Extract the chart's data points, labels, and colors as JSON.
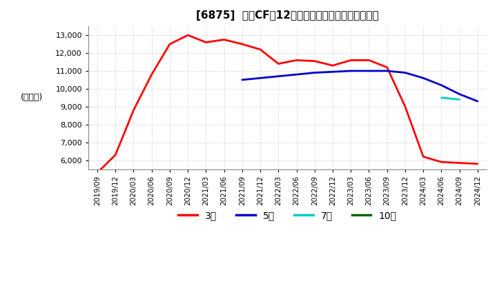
{
  "title": "[6875]  営業CFの12か月移動合計の標準偏差の推移",
  "ylabel": "(百万円)",
  "ylim": [
    5500,
    13500
  ],
  "yticks": [
    6000,
    7000,
    8000,
    9000,
    10000,
    11000,
    12000,
    13000
  ],
  "background_color": "#ffffff",
  "grid_color": "#aaaaaa",
  "legend_labels": [
    "3年",
    "5年",
    "7年",
    "10年"
  ],
  "legend_colors": [
    "#ff0000",
    "#0000cc",
    "#00cccc",
    "#006600"
  ],
  "x_labels": [
    "2019/09",
    "2019/12",
    "2020/03",
    "2020/06",
    "2020/09",
    "2020/12",
    "2021/03",
    "2021/06",
    "2021/09",
    "2021/12",
    "2022/03",
    "2022/06",
    "2022/09",
    "2022/12",
    "2023/03",
    "2023/06",
    "2023/09",
    "2023/12",
    "2024/03",
    "2024/06",
    "2024/09",
    "2024/12"
  ],
  "series_3yr": [
    5300,
    6300,
    8800,
    10800,
    12500,
    13000,
    12600,
    12750,
    12500,
    12200,
    11400,
    11600,
    11550,
    11300,
    11600,
    11600,
    11200,
    9000,
    6200,
    5900,
    5850,
    5800
  ],
  "series_5yr": [
    null,
    null,
    null,
    null,
    null,
    null,
    null,
    null,
    10500,
    10600,
    10700,
    10800,
    10900,
    10950,
    11000,
    11000,
    11000,
    10900,
    10600,
    10200,
    9700,
    9300
  ],
  "series_7yr": [
    null,
    null,
    null,
    null,
    null,
    null,
    null,
    null,
    null,
    null,
    null,
    null,
    null,
    null,
    null,
    null,
    null,
    null,
    null,
    9500,
    9400,
    null
  ],
  "series_10yr": [
    null,
    null,
    null,
    null,
    null,
    null,
    null,
    null,
    null,
    null,
    null,
    null,
    null,
    null,
    null,
    null,
    null,
    null,
    null,
    null,
    null,
    null
  ],
  "line_width": 2.0
}
